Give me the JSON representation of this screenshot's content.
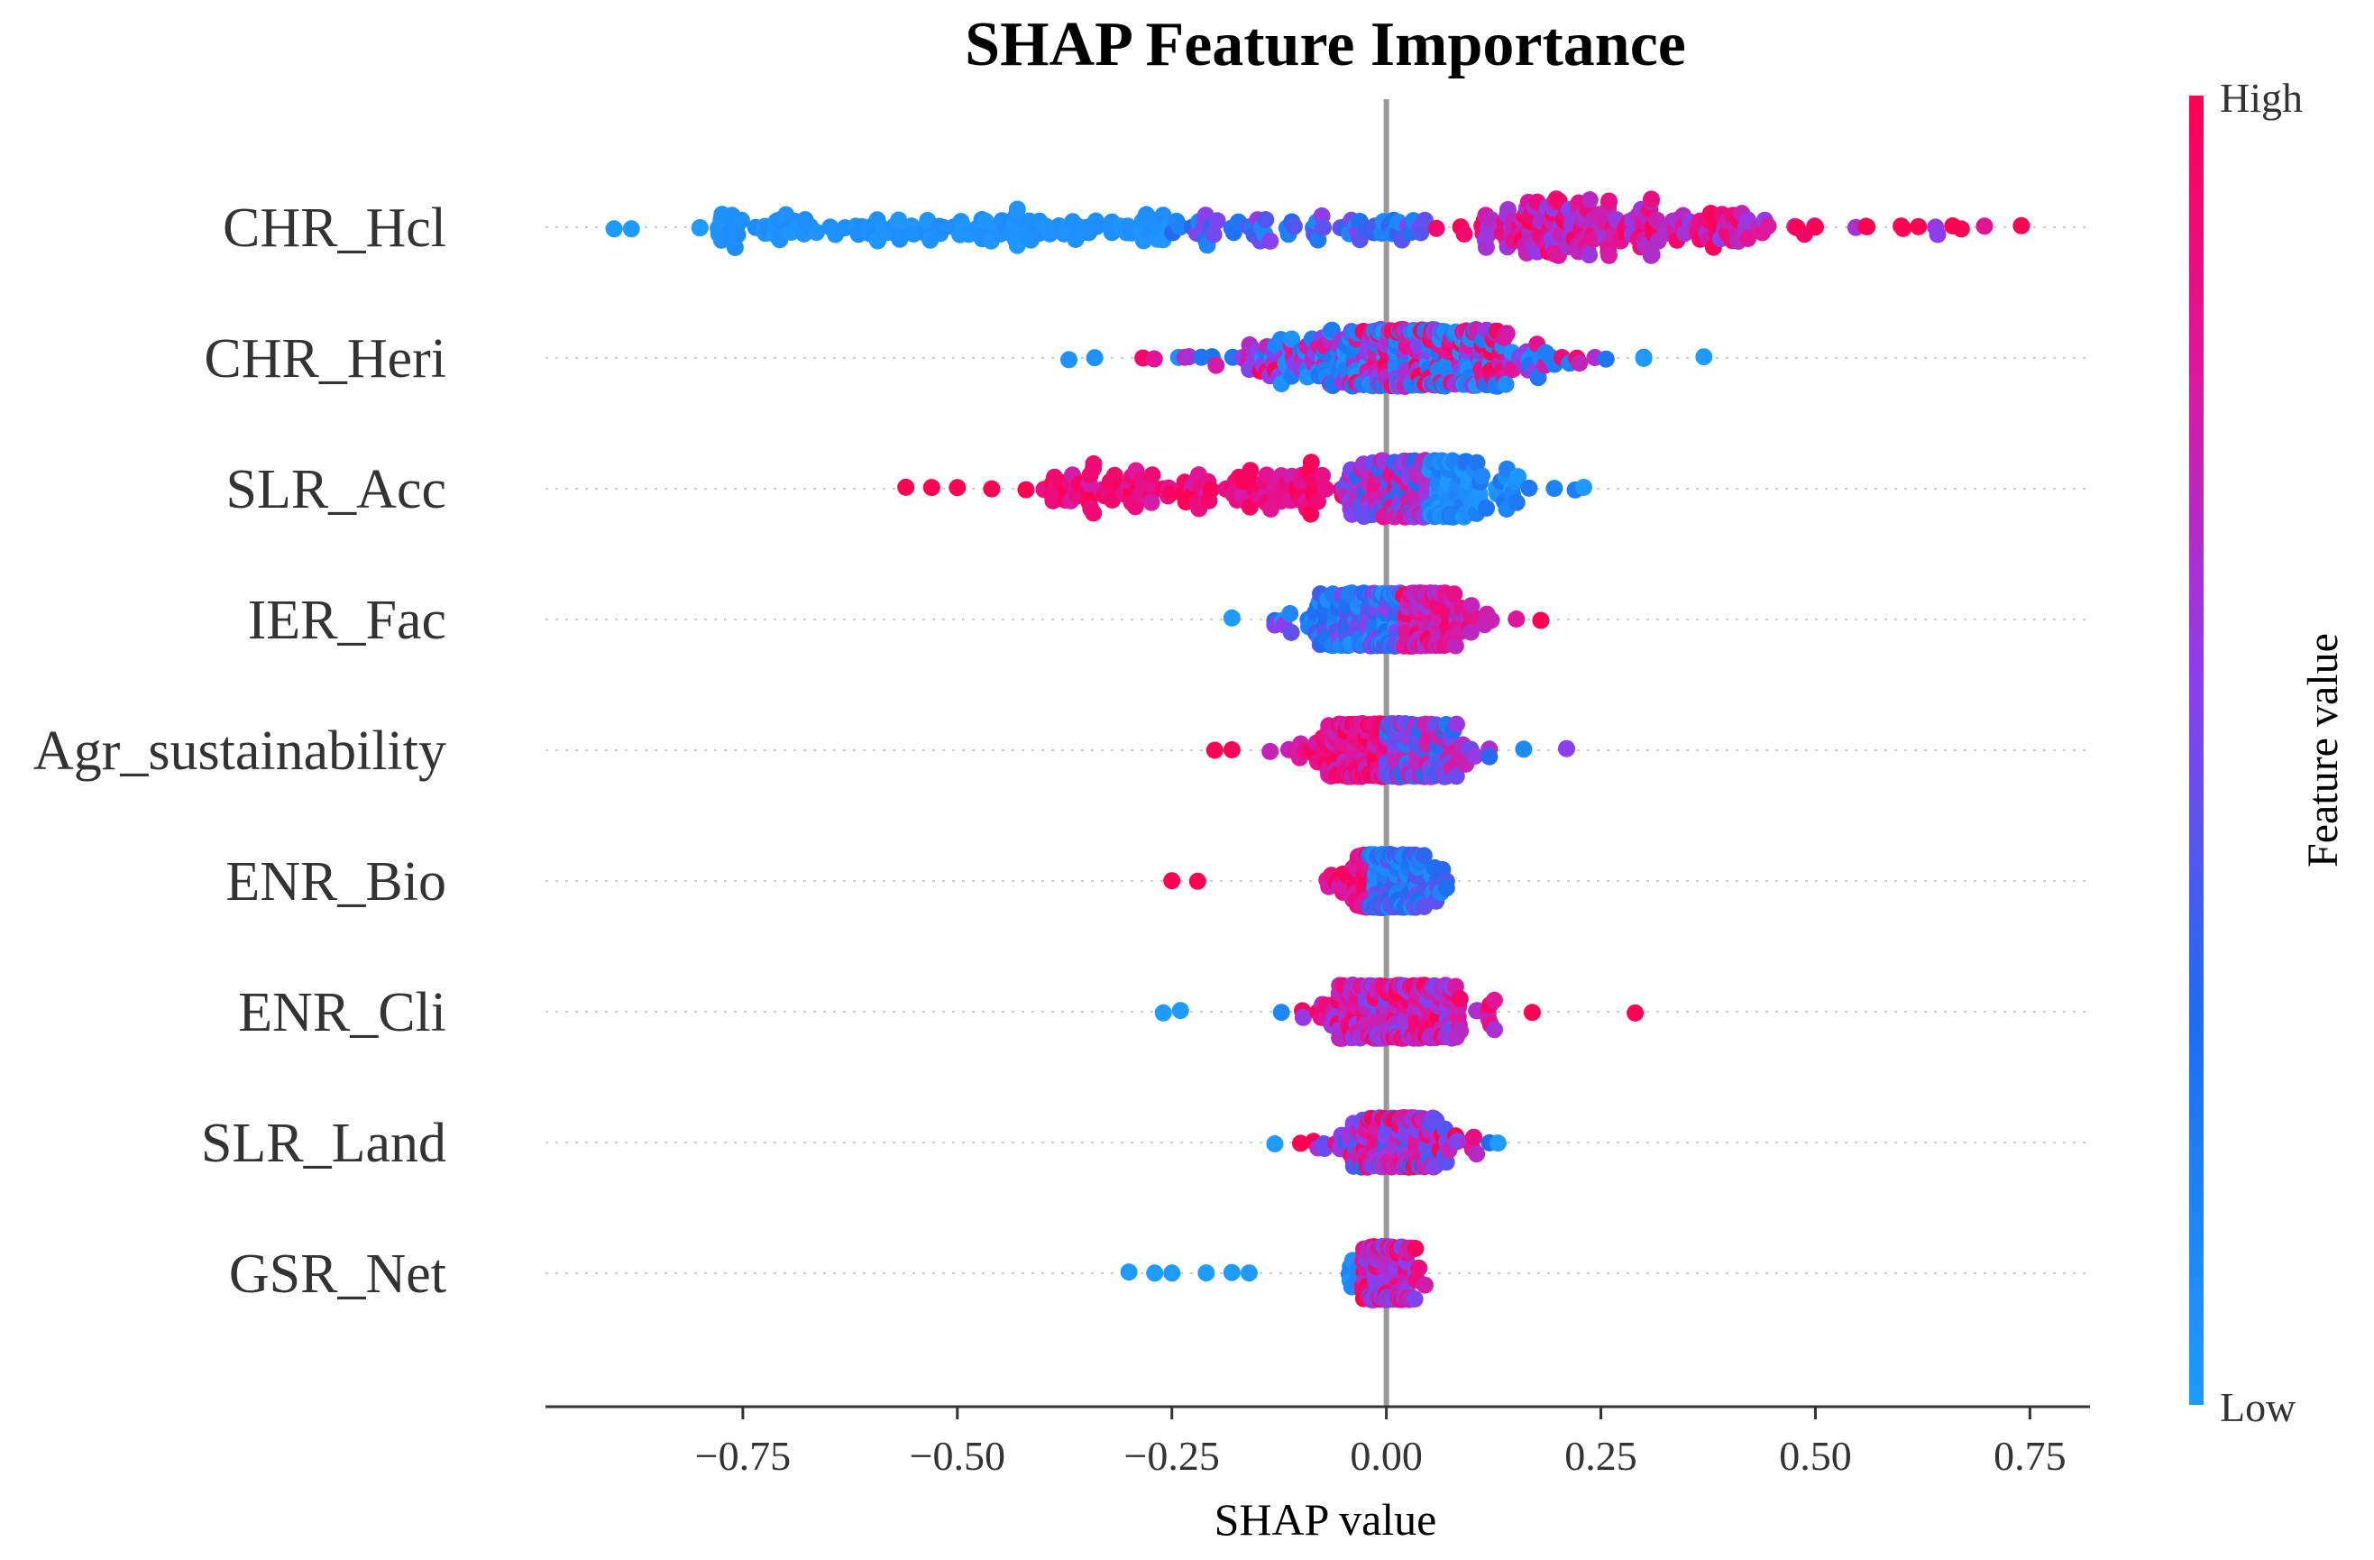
{
  "chart_data": {
    "type": "scatter",
    "subtype": "shap-beeswarm",
    "title": "SHAP Feature Importance",
    "xlabel": "SHAP value",
    "xlim": [
      -0.98,
      0.82
    ],
    "xticks": [
      -0.75,
      -0.5,
      -0.25,
      0.0,
      0.25,
      0.5,
      0.75
    ],
    "xtick_labels": [
      "−0.75",
      "−0.50",
      "−0.25",
      "0.00",
      "0.25",
      "0.50",
      "0.75"
    ],
    "zero_line": 0.0,
    "colorbar": {
      "label": "Feature value",
      "high_label": "High",
      "low_label": "Low",
      "high_color": "#ff0052",
      "mid_color": "#8b3ff0",
      "low_color": "#1e88ff"
    },
    "features": [
      {
        "name": "CHR_Hcl",
        "min": -0.9,
        "max": 0.74,
        "mode": "hcl",
        "points": [
          {
            "x": -0.9,
            "v": 0.0
          },
          {
            "x": -0.88,
            "v": 0.0
          },
          {
            "x": -0.8,
            "v": 0.0
          },
          {
            "x": -0.8,
            "v": 0.0
          },
          {
            "x": 0.5,
            "v": 1.0
          },
          {
            "x": 0.56,
            "v": 1.0
          },
          {
            "x": 0.6,
            "v": 1.0
          },
          {
            "x": 0.62,
            "v": 1.0
          },
          {
            "x": 0.66,
            "v": 1.0
          },
          {
            "x": 0.67,
            "v": 1.0
          },
          {
            "x": 0.74,
            "v": 1.0
          }
        ]
      },
      {
        "name": "CHR_Heri",
        "min": -0.37,
        "max": 0.37,
        "mode": "heri",
        "points": [
          {
            "x": -0.37,
            "v": 0.05
          },
          {
            "x": -0.34,
            "v": 0.05
          },
          {
            "x": 0.3,
            "v": 0.0
          },
          {
            "x": 0.37,
            "v": 0.0
          }
        ]
      },
      {
        "name": "SLR_Acc",
        "min": -0.56,
        "max": 0.23,
        "mode": "acc",
        "points": [
          {
            "x": -0.56,
            "v": 1.0
          },
          {
            "x": -0.53,
            "v": 1.0
          },
          {
            "x": -0.5,
            "v": 1.0
          },
          {
            "x": -0.46,
            "v": 1.0
          },
          {
            "x": -0.42,
            "v": 1.0
          },
          {
            "x": 0.23,
            "v": 0.0
          }
        ]
      },
      {
        "name": "IER_Fac",
        "min": -0.18,
        "max": 0.18,
        "mode": "fac",
        "points": [
          {
            "x": -0.18,
            "v": 0.0
          },
          {
            "x": 0.18,
            "v": 1.0
          }
        ]
      },
      {
        "name": "Agr_sustainability",
        "min": -0.2,
        "max": 0.21,
        "mode": "agr",
        "points": [
          {
            "x": -0.2,
            "v": 1.0
          },
          {
            "x": -0.18,
            "v": 1.0
          },
          {
            "x": 0.16,
            "v": 0.1
          },
          {
            "x": 0.21,
            "v": 0.55
          }
        ]
      },
      {
        "name": "ENR_Bio",
        "min": -0.25,
        "max": 0.07,
        "mode": "bio",
        "points": [
          {
            "x": -0.25,
            "v": 1.0
          },
          {
            "x": -0.22,
            "v": 1.0
          }
        ]
      },
      {
        "name": "ENR_Cli",
        "min": -0.26,
        "max": 0.29,
        "mode": "cli",
        "points": [
          {
            "x": -0.26,
            "v": 0.0
          },
          {
            "x": -0.24,
            "v": 0.0
          },
          {
            "x": 0.17,
            "v": 1.0
          },
          {
            "x": 0.29,
            "v": 1.0
          }
        ]
      },
      {
        "name": "SLR_Land",
        "min": -0.13,
        "max": 0.13,
        "mode": "land",
        "points": [
          {
            "x": -0.13,
            "v": 0.0
          },
          {
            "x": -0.1,
            "v": 1.0
          },
          {
            "x": 0.13,
            "v": 0.0
          }
        ]
      },
      {
        "name": "GSR_Net",
        "min": -0.3,
        "max": 0.06,
        "mode": "net",
        "points": [
          {
            "x": -0.3,
            "v": 0.0
          },
          {
            "x": -0.27,
            "v": 0.0
          },
          {
            "x": -0.25,
            "v": 0.0
          },
          {
            "x": -0.21,
            "v": 0.0
          },
          {
            "x": -0.18,
            "v": 0.0
          },
          {
            "x": -0.16,
            "v": 0.0
          }
        ]
      }
    ]
  }
}
